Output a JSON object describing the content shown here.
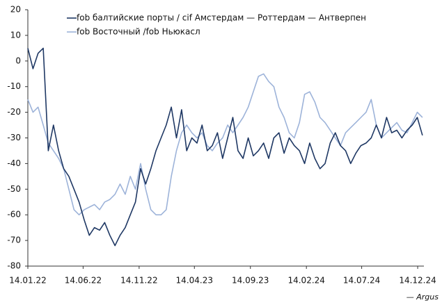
{
  "chart_data": {
    "type": "line",
    "x": [
      "2022-01-14",
      "2022-01-28",
      "2022-02-11",
      "2022-02-25",
      "2022-03-11",
      "2022-03-25",
      "2022-04-08",
      "2022-04-22",
      "2022-05-06",
      "2022-05-20",
      "2022-06-03",
      "2022-06-17",
      "2022-07-01",
      "2022-07-15",
      "2022-07-29",
      "2022-08-12",
      "2022-08-26",
      "2022-09-09",
      "2022-09-23",
      "2022-10-07",
      "2022-10-21",
      "2022-11-04",
      "2022-11-18",
      "2022-12-02",
      "2022-12-16",
      "2022-12-30",
      "2023-01-13",
      "2023-01-27",
      "2023-02-10",
      "2023-02-24",
      "2023-03-10",
      "2023-03-24",
      "2023-04-07",
      "2023-04-21",
      "2023-05-05",
      "2023-05-19",
      "2023-06-02",
      "2023-06-16",
      "2023-06-30",
      "2023-07-14",
      "2023-07-28",
      "2023-08-11",
      "2023-08-25",
      "2023-09-08",
      "2023-09-22",
      "2023-10-06",
      "2023-10-20",
      "2023-11-03",
      "2023-11-17",
      "2023-12-01",
      "2023-12-15",
      "2023-12-29",
      "2024-01-12",
      "2024-01-26",
      "2024-02-09",
      "2024-02-23",
      "2024-03-08",
      "2024-03-22",
      "2024-04-05",
      "2024-04-19",
      "2024-05-03",
      "2024-05-17",
      "2024-05-31",
      "2024-06-14",
      "2024-06-28",
      "2024-07-12",
      "2024-07-26",
      "2024-08-09",
      "2024-08-23",
      "2024-09-06",
      "2024-09-20",
      "2024-10-04",
      "2024-10-18",
      "2024-11-01",
      "2024-11-15",
      "2024-11-29",
      "2024-12-13",
      "2024-12-27"
    ],
    "series": [
      {
        "name": "fob балтийские порты / cif Амстердам — Роттердам — Антверпен",
        "color": "#1f3864",
        "values": [
          5,
          -3,
          3,
          5,
          -35,
          -25,
          -35,
          -42,
          -45,
          -50,
          -55,
          -62,
          -68,
          -65,
          -66,
          -63,
          -68,
          -72,
          -68,
          -65,
          -60,
          -55,
          -42,
          -48,
          -42,
          -35,
          -30,
          -25,
          -18,
          -30,
          -19,
          -35,
          -30,
          -32,
          -25,
          -35,
          -33,
          -28,
          -38,
          -30,
          -22,
          -35,
          -38,
          -30,
          -37,
          -35,
          -32,
          -38,
          -30,
          -28,
          -36,
          -30,
          -33,
          -35,
          -40,
          -32,
          -38,
          -42,
          -40,
          -32,
          -28,
          -33,
          -35,
          -40,
          -36,
          -33,
          -32,
          -30,
          -25,
          -30,
          -22,
          -28,
          -27,
          -30,
          -27,
          -25,
          -22,
          -29
        ]
      },
      {
        "name": "fob Восточный /fob Ньюкасл",
        "color": "#9db3d9",
        "values": [
          -15,
          -20,
          -18,
          -25,
          -32,
          -35,
          -38,
          -42,
          -50,
          -58,
          -60,
          -58,
          -57,
          -56,
          -58,
          -55,
          -54,
          -52,
          -48,
          -52,
          -45,
          -50,
          -40,
          -50,
          -58,
          -60,
          -60,
          -58,
          -45,
          -35,
          -28,
          -25,
          -28,
          -30,
          -28,
          -33,
          -35,
          -32,
          -30,
          -25,
          -28,
          -25,
          -22,
          -18,
          -12,
          -6,
          -5,
          -8,
          -10,
          -18,
          -22,
          -28,
          -30,
          -24,
          -13,
          -12,
          -16,
          -22,
          -24,
          -27,
          -30,
          -33,
          -28,
          -26,
          -24,
          -22,
          -20,
          -15,
          -25,
          -30,
          -28,
          -26,
          -24,
          -27,
          -28,
          -24,
          -20,
          -22
        ]
      }
    ],
    "xlim": [
      "2022-01-14",
      "2024-12-31"
    ],
    "xticks": [
      {
        "value": "2022-01-14",
        "label": "14.01.22"
      },
      {
        "value": "2022-06-14",
        "label": "14.06.22"
      },
      {
        "value": "2022-11-14",
        "label": "14.11.22"
      },
      {
        "value": "2023-04-14",
        "label": "14.04.23"
      },
      {
        "value": "2023-09-14",
        "label": "14.09.23"
      },
      {
        "value": "2024-02-14",
        "label": "14.02.24"
      },
      {
        "value": "2024-07-14",
        "label": "14.07.24"
      },
      {
        "value": "2024-12-14",
        "label": "14.12.24"
      }
    ],
    "ylim": [
      -80,
      20
    ],
    "yticks": [
      -80,
      -70,
      -60,
      -50,
      -40,
      -30,
      -20,
      -10,
      0,
      10,
      20
    ],
    "grid": false,
    "legend": "upper-left",
    "annotation": "— Argus"
  }
}
